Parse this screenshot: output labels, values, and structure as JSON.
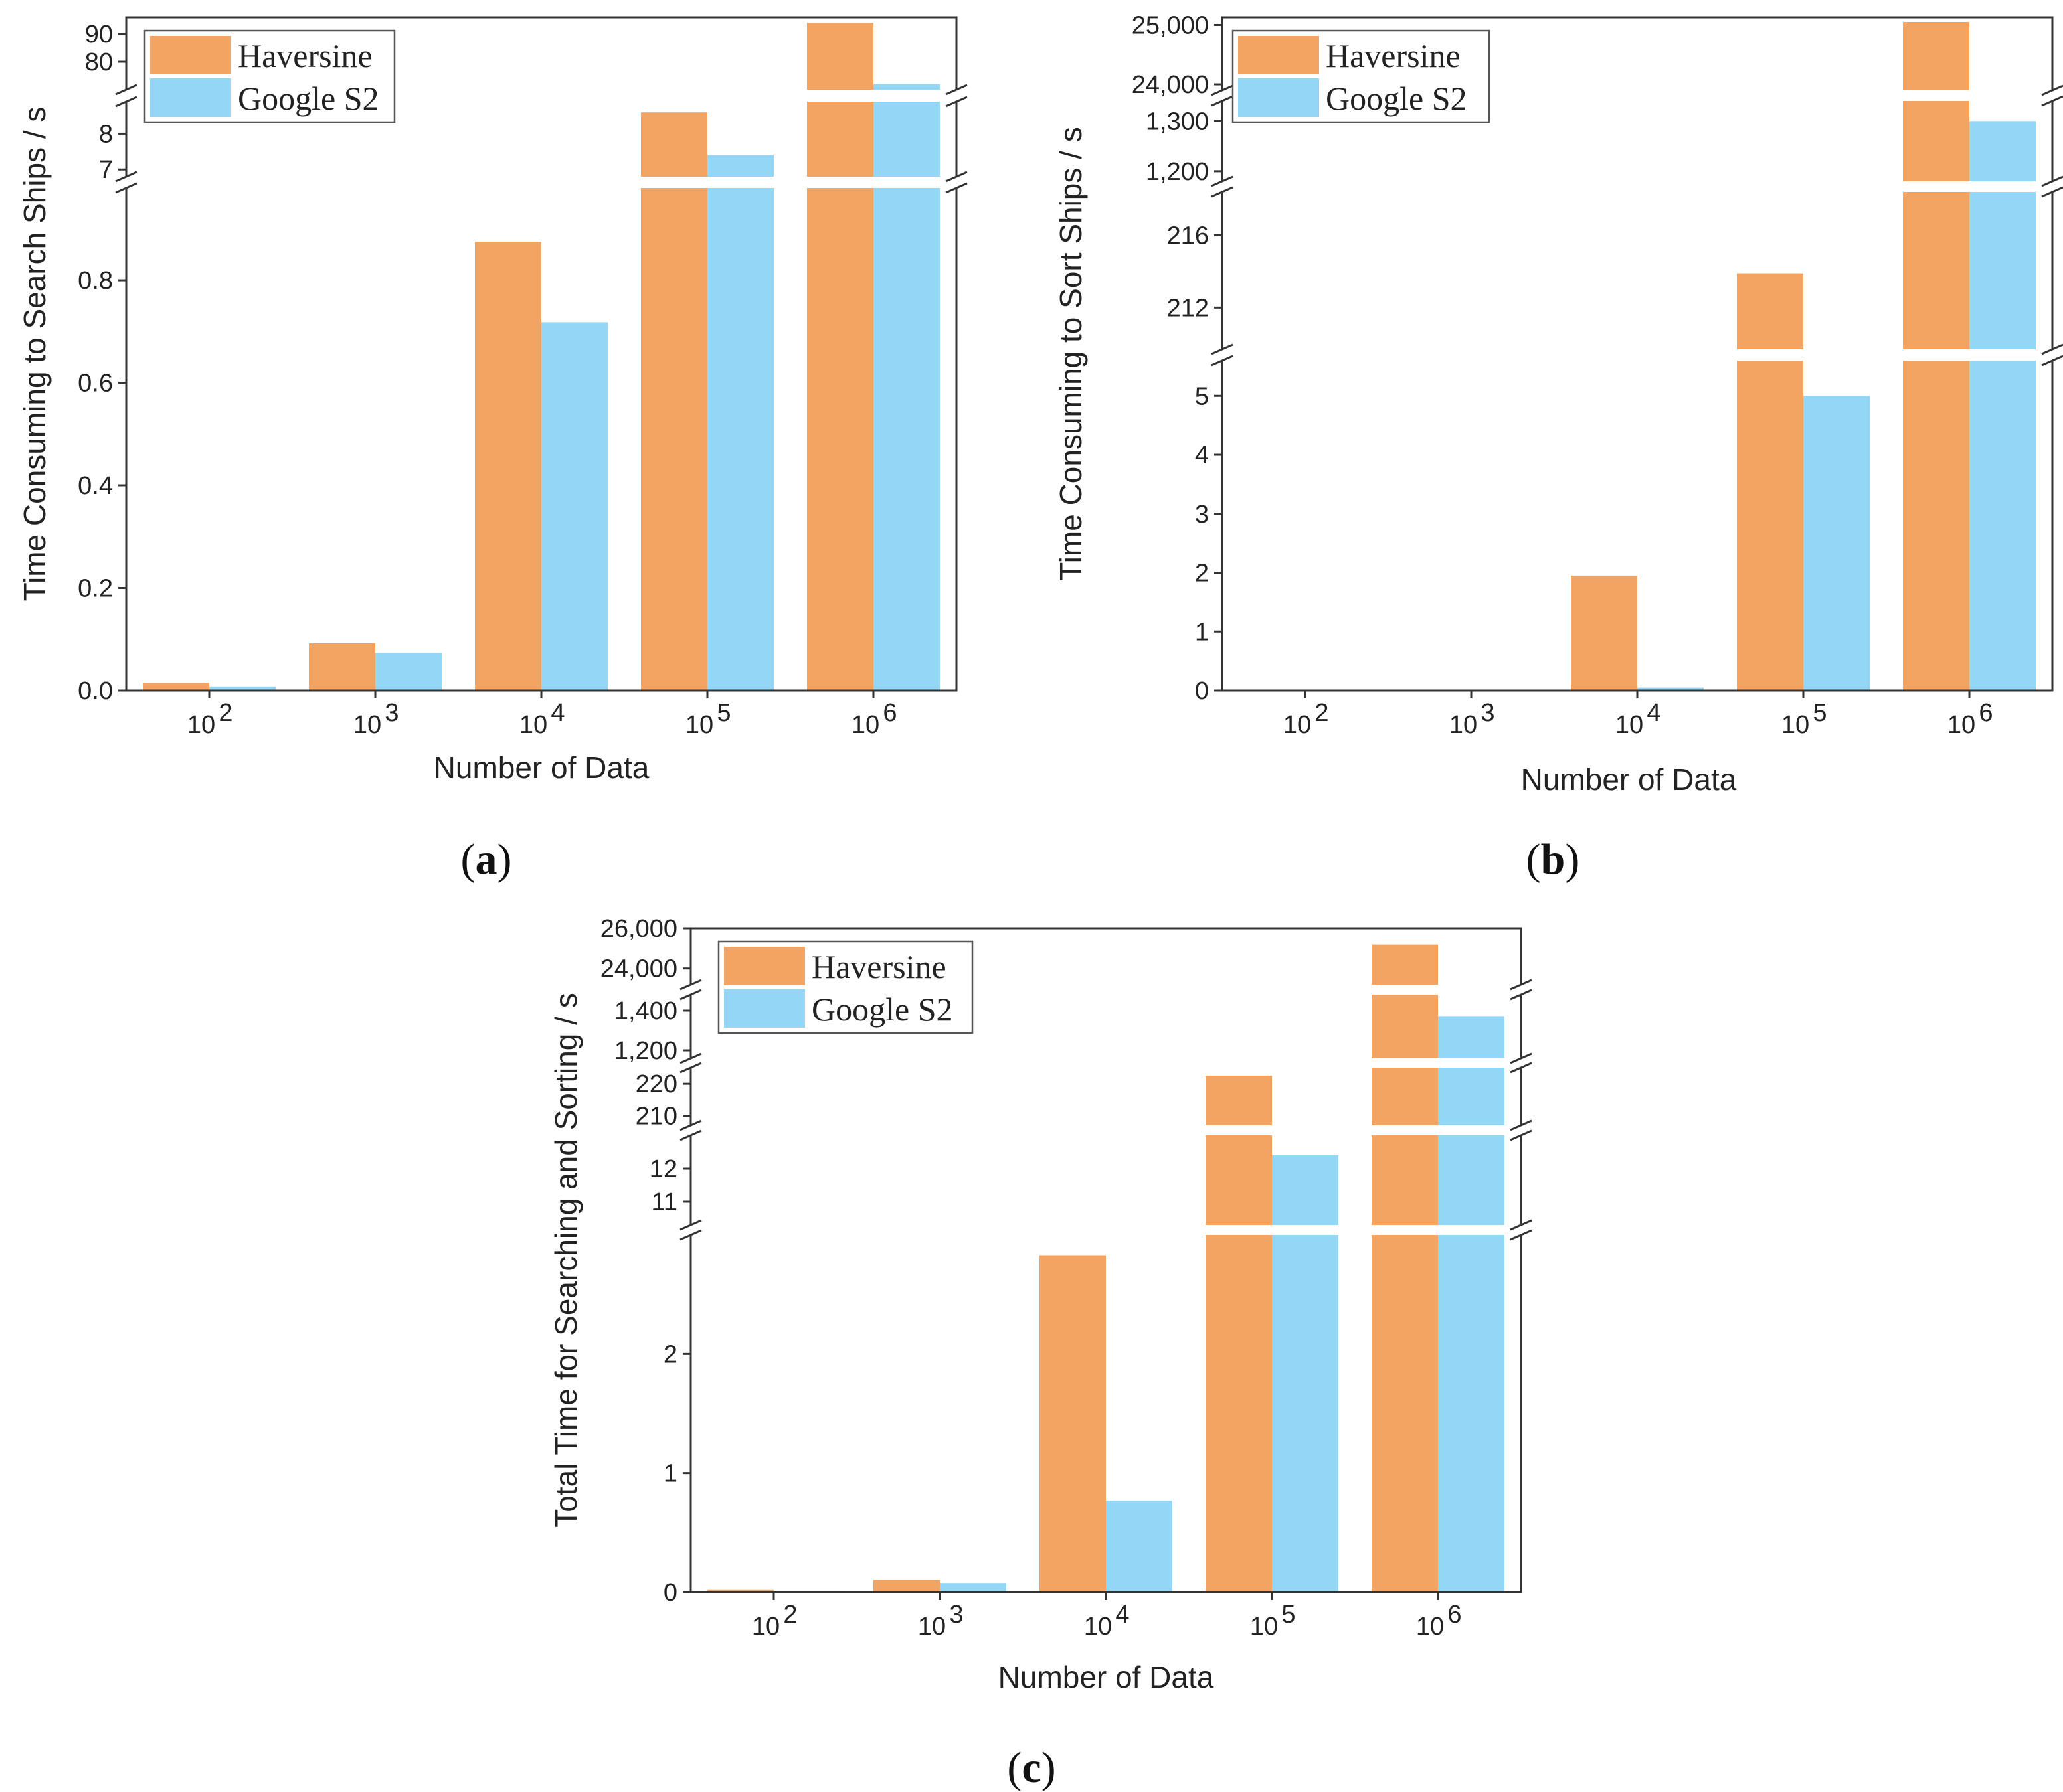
{
  "colors": {
    "haversine": "#F4A462",
    "google_s2": "#94D6F6",
    "axis": "#333333"
  },
  "chart_data": [
    {
      "id": "a",
      "panel_label": "a",
      "type": "bar",
      "xlabel": "Number of Data",
      "ylabel": "Time Consuming to Search Ships / s",
      "categories": [
        {
          "base": "10",
          "exp": "2"
        },
        {
          "base": "10",
          "exp": "3"
        },
        {
          "base": "10",
          "exp": "4"
        },
        {
          "base": "10",
          "exp": "5"
        },
        {
          "base": "10",
          "exp": "6"
        }
      ],
      "series": [
        {
          "name": "Haversine",
          "values": [
            0.015,
            0.092,
            0.875,
            8.6,
            94
          ]
        },
        {
          "name": "Google S2",
          "values": [
            0.008,
            0.073,
            0.718,
            7.4,
            72
          ]
        }
      ],
      "axis_breaks": true,
      "segments": [
        {
          "range": [
            0,
            0.98
          ],
          "ticks": [
            {
              "v": 0.0,
              "label": "0.0"
            },
            {
              "v": 0.2,
              "label": "0.2"
            },
            {
              "v": 0.4,
              "label": "0.4"
            },
            {
              "v": 0.6,
              "label": "0.6"
            },
            {
              "v": 0.8,
              "label": "0.8"
            }
          ]
        },
        {
          "range": [
            6.8,
            8.9
          ],
          "ticks": [
            {
              "v": 7,
              "label": "7"
            },
            {
              "v": 8,
              "label": "8"
            }
          ]
        },
        {
          "range": [
            70,
            95
          ],
          "ticks": [
            {
              "v": 80,
              "label": "80"
            },
            {
              "v": 90,
              "label": "90"
            }
          ]
        }
      ],
      "legend": {
        "position": "top-left",
        "entries": [
          "Haversine",
          "Google S2"
        ]
      }
    },
    {
      "id": "b",
      "panel_label": "b",
      "type": "bar",
      "xlabel": "Number of Data",
      "ylabel": "Time Consuming to Sort Ships / s",
      "categories": [
        {
          "base": "10",
          "exp": "2"
        },
        {
          "base": "10",
          "exp": "3"
        },
        {
          "base": "10",
          "exp": "4"
        },
        {
          "base": "10",
          "exp": "5"
        },
        {
          "base": "10",
          "exp": "6"
        }
      ],
      "series": [
        {
          "name": "Haversine",
          "values": [
            0.003,
            0.012,
            1.95,
            213.9,
            25100
          ]
        },
        {
          "name": "Google S2",
          "values": [
            0.001,
            0.004,
            0.05,
            5.0,
            1300
          ]
        }
      ],
      "axis_breaks": true,
      "segments": [
        {
          "range": [
            0,
            5.6
          ],
          "ticks": [
            {
              "v": 0,
              "label": "0"
            },
            {
              "v": 1,
              "label": "1"
            },
            {
              "v": 2,
              "label": "2"
            },
            {
              "v": 3,
              "label": "3"
            },
            {
              "v": 4,
              "label": "4"
            },
            {
              "v": 5,
              "label": "5"
            }
          ]
        },
        {
          "range": [
            209.7,
            218.4
          ],
          "ticks": [
            {
              "v": 212,
              "label": "212"
            },
            {
              "v": 216,
              "label": "216"
            }
          ]
        },
        {
          "range": [
            1180,
            1340
          ],
          "ticks": [
            {
              "v": 1200,
              "label": "1,200"
            },
            {
              "v": 1300,
              "label": "1,300"
            }
          ]
        },
        {
          "range": [
            23900,
            25050
          ],
          "ticks": [
            {
              "v": 24000,
              "label": "24,000"
            },
            {
              "v": 25000,
              "label": "25,000"
            }
          ]
        }
      ],
      "legend": {
        "position": "top-left",
        "entries": [
          "Haversine",
          "Google S2"
        ]
      }
    },
    {
      "id": "c",
      "panel_label": "c",
      "type": "bar",
      "xlabel": "Number of Data",
      "ylabel": "Total Time for Searching and Sorting / s",
      "categories": [
        {
          "base": "10",
          "exp": "2"
        },
        {
          "base": "10",
          "exp": "3"
        },
        {
          "base": "10",
          "exp": "4"
        },
        {
          "base": "10",
          "exp": "5"
        },
        {
          "base": "10",
          "exp": "6"
        }
      ],
      "series": [
        {
          "name": "Haversine",
          "values": [
            0.018,
            0.104,
            2.83,
            222.5,
            25190
          ]
        },
        {
          "name": "Google S2",
          "values": [
            0.009,
            0.077,
            0.77,
            12.4,
            1372
          ]
        }
      ],
      "axis_breaks": true,
      "segments": [
        {
          "range": [
            0,
            3.0
          ],
          "ticks": [
            {
              "v": 0,
              "label": "0"
            },
            {
              "v": 1,
              "label": "1"
            },
            {
              "v": 2,
              "label": "2"
            }
          ]
        },
        {
          "range": [
            10.3,
            13.0
          ],
          "ticks": [
            {
              "v": 11,
              "label": "11"
            },
            {
              "v": 12,
              "label": "12"
            }
          ]
        },
        {
          "range": [
            207,
            225
          ],
          "ticks": [
            {
              "v": 210,
              "label": "210"
            },
            {
              "v": 220,
              "label": "220"
            }
          ]
        },
        {
          "range": [
            1160,
            1480
          ],
          "ticks": [
            {
              "v": 1200,
              "label": "1,200"
            },
            {
              "v": 1400,
              "label": "1,400"
            }
          ]
        },
        {
          "range": [
            23200,
            26000
          ],
          "ticks": [
            {
              "v": 24000,
              "label": "24,000"
            },
            {
              "v": 26000,
              "label": "26,000"
            }
          ]
        }
      ],
      "legend": {
        "position": "top-left",
        "entries": [
          "Haversine",
          "Google S2"
        ]
      }
    }
  ]
}
